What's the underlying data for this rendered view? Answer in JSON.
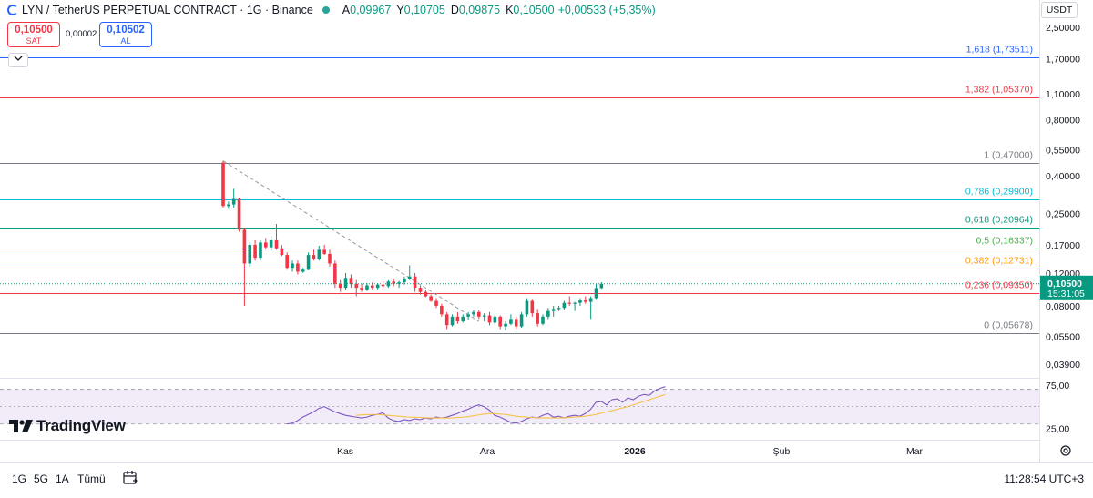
{
  "legend": {
    "title": "LYN / TetherUS PERPETUAL CONTRACT · 1G · Binance",
    "open_label": "A",
    "open": "0,09967",
    "high_label": "Y",
    "high": "0,10705",
    "low_label": "D",
    "low": "0,09875",
    "close_label": "K",
    "close": "0,10500",
    "change": "+0,00533 (+5,35%)"
  },
  "trade": {
    "sell_price": "0,10500",
    "sell_label": "SAT",
    "spread": "0,00002",
    "buy_price": "0,10502",
    "buy_label": "AL"
  },
  "collapse_icon": "chevron-down-icon",
  "currency": "USDT",
  "price_axis": [
    "2,50000",
    "1,70000",
    "1,10000",
    "0,80000",
    "0,55000",
    "0,40000",
    "0,25000",
    "0,17000",
    "0,12000",
    "0,08000",
    "0,05500",
    "0,03900"
  ],
  "rsi_axis": [
    "75,00",
    "25,00"
  ],
  "last_price": {
    "value": "0,10500",
    "countdown": "15:31:05"
  },
  "time_axis": [
    "Kas",
    "Ara",
    "2026",
    "Şub",
    "Mar"
  ],
  "logo_text": "TradingView",
  "bottom": {
    "ranges": [
      "1G",
      "5G",
      "1A",
      "Tümü"
    ],
    "clock": "11:28:54 UTC+3"
  },
  "colors": {
    "up": "#089981",
    "down": "#f23645",
    "rsi": "#7e57c2",
    "rsi_ma": "#f7c14a",
    "rsi_band": "#ede7f6"
  },
  "chart_data": {
    "type": "candlestick",
    "log_scale": true,
    "y_range": [
      0.034,
      2.8
    ],
    "fibonacci": [
      {
        "label": "1,618 (1,73511)",
        "value": 1.73511,
        "color": "#2962ff"
      },
      {
        "label": "1,382 (1,05370)",
        "value": 1.0537,
        "color": "#f23645"
      },
      {
        "label": "1 (0,47000)",
        "value": 0.47,
        "color": "#787b86"
      },
      {
        "label": "0,786 (0,29900)",
        "value": 0.299,
        "color": "#00bcd4"
      },
      {
        "label": "0,618 (0,20964)",
        "value": 0.20964,
        "color": "#089981"
      },
      {
        "label": "0,5 (0,16337)",
        "value": 0.16337,
        "color": "#4caf50"
      },
      {
        "label": "0,382 (0,12731)",
        "value": 0.12731,
        "color": "#ff9800"
      },
      {
        "label": "0,236 (0,09350)",
        "value": 0.0935,
        "color": "#f23645"
      },
      {
        "label": "0 (0,05678)",
        "value": 0.05678,
        "color": "#787b86"
      }
    ],
    "candles": [
      [
        0.47,
        0.48,
        0.27,
        0.275
      ],
      [
        0.275,
        0.29,
        0.265,
        0.28
      ],
      [
        0.28,
        0.34,
        0.27,
        0.3
      ],
      [
        0.3,
        0.305,
        0.2,
        0.205
      ],
      [
        0.205,
        0.21,
        0.08,
        0.135
      ],
      [
        0.135,
        0.175,
        0.13,
        0.17
      ],
      [
        0.17,
        0.18,
        0.14,
        0.145
      ],
      [
        0.145,
        0.18,
        0.14,
        0.175
      ],
      [
        0.175,
        0.185,
        0.16,
        0.165
      ],
      [
        0.165,
        0.19,
        0.158,
        0.18
      ],
      [
        0.18,
        0.22,
        0.16,
        0.163
      ],
      [
        0.163,
        0.17,
        0.148,
        0.15
      ],
      [
        0.15,
        0.155,
        0.125,
        0.128
      ],
      [
        0.128,
        0.14,
        0.122,
        0.135
      ],
      [
        0.135,
        0.14,
        0.118,
        0.122
      ],
      [
        0.122,
        0.128,
        0.12,
        0.125
      ],
      [
        0.125,
        0.155,
        0.124,
        0.15
      ],
      [
        0.15,
        0.16,
        0.14,
        0.143
      ],
      [
        0.143,
        0.168,
        0.14,
        0.16
      ],
      [
        0.16,
        0.17,
        0.15,
        0.152
      ],
      [
        0.152,
        0.16,
        0.13,
        0.135
      ],
      [
        0.135,
        0.14,
        0.1,
        0.105
      ],
      [
        0.105,
        0.11,
        0.095,
        0.1
      ],
      [
        0.1,
        0.12,
        0.098,
        0.113
      ],
      [
        0.113,
        0.118,
        0.1,
        0.105
      ],
      [
        0.105,
        0.11,
        0.09,
        0.1
      ],
      [
        0.1,
        0.105,
        0.095,
        0.098
      ],
      [
        0.098,
        0.106,
        0.096,
        0.103
      ],
      [
        0.103,
        0.107,
        0.098,
        0.1
      ],
      [
        0.1,
        0.106,
        0.098,
        0.104
      ],
      [
        0.104,
        0.108,
        0.1,
        0.102
      ],
      [
        0.102,
        0.11,
        0.1,
        0.108
      ],
      [
        0.108,
        0.112,
        0.102,
        0.105
      ],
      [
        0.105,
        0.109,
        0.1,
        0.107
      ],
      [
        0.107,
        0.115,
        0.104,
        0.112
      ],
      [
        0.112,
        0.132,
        0.11,
        0.115
      ],
      [
        0.115,
        0.12,
        0.095,
        0.1
      ],
      [
        0.1,
        0.103,
        0.092,
        0.095
      ],
      [
        0.095,
        0.097,
        0.089,
        0.09
      ],
      [
        0.09,
        0.092,
        0.084,
        0.085
      ],
      [
        0.085,
        0.088,
        0.078,
        0.08
      ],
      [
        0.08,
        0.082,
        0.07,
        0.072
      ],
      [
        0.072,
        0.074,
        0.06,
        0.063
      ],
      [
        0.063,
        0.072,
        0.062,
        0.07
      ],
      [
        0.07,
        0.074,
        0.064,
        0.066
      ],
      [
        0.066,
        0.072,
        0.065,
        0.07
      ],
      [
        0.07,
        0.074,
        0.067,
        0.072
      ],
      [
        0.072,
        0.076,
        0.07,
        0.074
      ],
      [
        0.074,
        0.076,
        0.068,
        0.07
      ],
      [
        0.07,
        0.073,
        0.066,
        0.071
      ],
      [
        0.071,
        0.074,
        0.063,
        0.065
      ],
      [
        0.065,
        0.072,
        0.063,
        0.07
      ],
      [
        0.07,
        0.071,
        0.06,
        0.062
      ],
      [
        0.062,
        0.066,
        0.059,
        0.064
      ],
      [
        0.064,
        0.072,
        0.063,
        0.068
      ],
      [
        0.068,
        0.07,
        0.06,
        0.062
      ],
      [
        0.062,
        0.074,
        0.061,
        0.072
      ],
      [
        0.072,
        0.088,
        0.07,
        0.085
      ],
      [
        0.085,
        0.087,
        0.07,
        0.073
      ],
      [
        0.073,
        0.077,
        0.062,
        0.064
      ],
      [
        0.064,
        0.072,
        0.063,
        0.07
      ],
      [
        0.07,
        0.078,
        0.068,
        0.075
      ],
      [
        0.075,
        0.08,
        0.07,
        0.077
      ],
      [
        0.077,
        0.08,
        0.075,
        0.078
      ],
      [
        0.078,
        0.085,
        0.076,
        0.083
      ],
      [
        0.083,
        0.09,
        0.08,
        0.082
      ],
      [
        0.082,
        0.084,
        0.075,
        0.083
      ],
      [
        0.083,
        0.088,
        0.08,
        0.086
      ],
      [
        0.086,
        0.09,
        0.082,
        0.084
      ],
      [
        0.084,
        0.09,
        0.068,
        0.088
      ],
      [
        0.088,
        0.105,
        0.087,
        0.0997
      ],
      [
        0.0997,
        0.10705,
        0.09875,
        0.105
      ]
    ],
    "rsi": [
      30,
      31,
      34,
      38,
      41,
      44,
      48,
      50,
      47,
      44,
      42,
      40,
      39,
      38,
      37,
      38,
      40,
      41,
      43,
      37,
      34,
      33,
      35,
      34,
      36,
      35,
      37,
      36,
      38,
      37,
      38,
      40,
      42,
      45,
      47,
      50,
      52,
      50,
      46,
      40,
      38,
      35,
      32,
      31,
      33,
      36,
      38,
      37,
      40,
      42,
      38,
      39,
      37,
      39,
      40,
      39,
      42,
      47,
      55,
      56,
      52,
      58,
      59,
      55,
      60,
      58,
      62,
      64,
      63,
      68,
      71,
      73
    ],
    "rsi_ma": [
      null,
      null,
      null,
      null,
      null,
      null,
      null,
      null,
      null,
      null,
      null,
      null,
      null,
      40,
      40.5,
      40.8,
      41,
      41,
      40.6,
      40,
      39.5,
      39,
      38.5,
      38,
      37.8,
      37.5,
      37.3,
      37,
      37,
      37,
      37,
      37,
      37.5,
      38,
      38.5,
      39.5,
      40.5,
      41.5,
      42,
      42,
      41.5,
      41,
      40,
      39,
      38.5,
      38,
      37.5,
      37.2,
      37,
      37,
      37,
      37,
      37.2,
      37.5,
      38,
      38.5,
      39,
      40,
      41,
      42.5,
      44,
      45.5,
      47,
      48.5,
      50,
      52,
      54,
      56,
      58,
      60,
      62,
      64
    ]
  }
}
